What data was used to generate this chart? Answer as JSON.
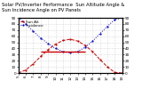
{
  "title_line1": "Solar PV/Inverter Performance  Sun Altitude Angle &",
  "title_line2": "Sun Incidence Angle on PV Panels",
  "legend1": "Sun Alt",
  "legend2": "Incidence",
  "bg_color": "#ffffff",
  "grid_color": "#bbbbbb",
  "sun_alt_color": "#cc0000",
  "incidence_color": "#0000cc",
  "horiz_line_color": "#cc0000",
  "hours": [
    5,
    6,
    7,
    8,
    9,
    10,
    11,
    12,
    13,
    14,
    15,
    16,
    17,
    18,
    19
  ],
  "sun_alt": [
    0,
    5,
    15,
    27,
    38,
    47,
    53,
    55,
    52,
    45,
    35,
    22,
    10,
    1,
    0
  ],
  "sun_incidence": [
    90,
    80,
    68,
    57,
    48,
    40,
    35,
    33,
    35,
    42,
    52,
    64,
    76,
    87,
    90
  ],
  "horiz_y": 35,
  "horiz_xstart": 8,
  "horiz_xend": 14,
  "ylim": [
    0,
    90
  ],
  "xlim": [
    5,
    19
  ],
  "yticks": [
    0,
    10,
    20,
    30,
    40,
    50,
    60,
    70,
    80,
    90
  ],
  "title_fontsize": 3.8,
  "tick_fontsize": 3.0,
  "legend_fontsize": 3.0,
  "linewidth": 0.7,
  "markersize": 1.2
}
